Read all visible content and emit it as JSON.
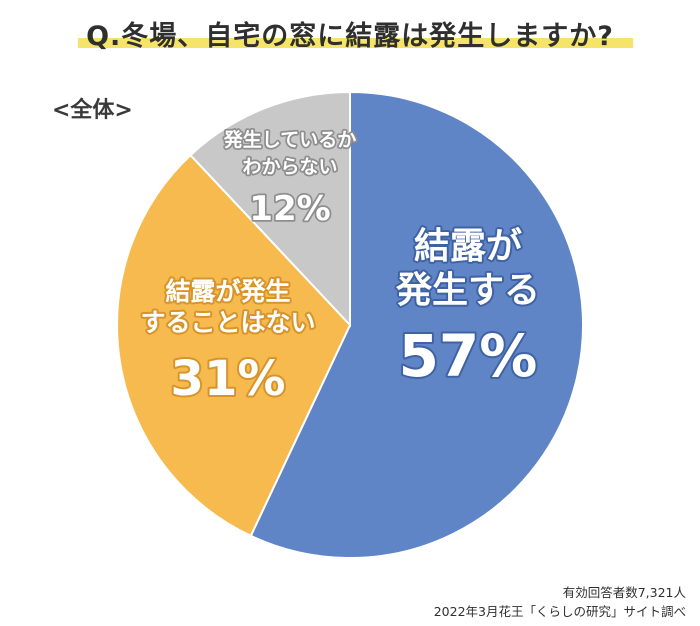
{
  "chart_data": {
    "type": "pie",
    "title": "Q.冬場、自宅の窓に結露は発生しますか?",
    "subset_label": "<全体>",
    "slices": [
      {
        "label_lines": [
          "結露が",
          "発生する"
        ],
        "value": 57,
        "value_label": "57%",
        "color": "#5f85c6"
      },
      {
        "label_lines": [
          "結露が発生",
          "することはない"
        ],
        "value": 31,
        "value_label": "31%",
        "color": "#f6ba4f"
      },
      {
        "label_lines": [
          "発生しているか",
          "わからない"
        ],
        "value": 12,
        "value_label": "12%",
        "color": "#c8c8c8"
      }
    ]
  },
  "footnotes": {
    "respondents": "有効回答者数7,321人",
    "source": "2022年3月花王「くらしの研究」サイト調べ"
  }
}
